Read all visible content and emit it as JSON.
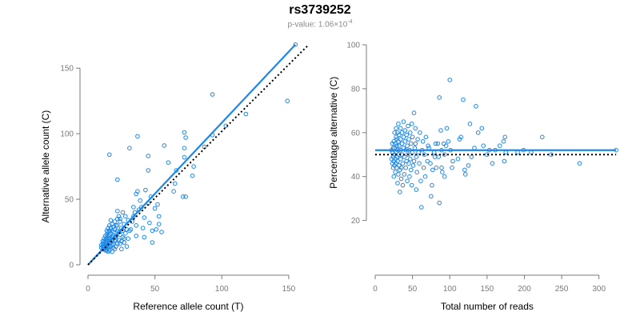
{
  "title": "rs3739252",
  "subtitle": {
    "prefix": "p-value: 1.06×10",
    "exponent": "-4"
  },
  "colors": {
    "points": "#1e88e5",
    "fit_line": "#1e88e5",
    "reference_line": "#000000",
    "axes": "#7a7a7a"
  },
  "chart_data": [
    {
      "type": "scatter",
      "xlabel": "Reference allele count (T)",
      "ylabel": "Alternative allele count (C)",
      "xlim": [
        0,
        165
      ],
      "ylim": [
        0,
        155
      ],
      "xticks": [
        0,
        50,
        100,
        150
      ],
      "yticks": [
        0,
        50,
        100,
        150
      ],
      "fit_line": {
        "x": [
          0,
          155
        ],
        "y": [
          0,
          168
        ]
      },
      "reference_line": {
        "x": [
          0,
          165
        ],
        "y": [
          0,
          168
        ],
        "style": "dotted"
      },
      "points": [
        [
          155,
          168
        ],
        [
          149,
          125
        ],
        [
          118,
          115
        ],
        [
          103,
          106
        ],
        [
          93,
          130
        ],
        [
          93,
          99
        ],
        [
          87,
          90
        ],
        [
          79,
          75
        ],
        [
          78,
          68
        ],
        [
          73,
          97
        ],
        [
          72,
          101
        ],
        [
          72,
          89
        ],
        [
          72,
          82
        ],
        [
          73,
          52
        ],
        [
          71,
          52
        ],
        [
          66,
          72
        ],
        [
          65,
          62
        ],
        [
          64,
          56
        ],
        [
          60,
          78
        ],
        [
          57,
          91
        ],
        [
          52,
          46
        ],
        [
          53,
          37
        ],
        [
          53,
          31
        ],
        [
          55,
          25
        ],
        [
          51,
          27
        ],
        [
          50,
          43
        ],
        [
          48,
          26
        ],
        [
          47,
          52
        ],
        [
          45,
          47
        ],
        [
          46,
          32
        ],
        [
          48,
          17
        ],
        [
          45,
          72
        ],
        [
          45,
          83
        ],
        [
          43,
          57
        ],
        [
          42,
          36
        ],
        [
          42,
          21
        ],
        [
          41,
          28
        ],
        [
          40,
          44
        ],
        [
          39,
          49
        ],
        [
          38,
          42
        ],
        [
          37,
          98
        ],
        [
          37,
          56
        ],
        [
          36,
          54
        ],
        [
          36,
          30
        ],
        [
          36,
          22
        ],
        [
          35,
          40
        ],
        [
          34,
          37
        ],
        [
          33,
          33
        ],
        [
          31,
          89
        ],
        [
          31,
          26
        ],
        [
          30,
          20
        ],
        [
          30,
          34
        ],
        [
          29,
          27
        ],
        [
          29,
          14
        ],
        [
          28,
          37
        ],
        [
          27,
          31
        ],
        [
          27,
          20
        ],
        [
          26,
          40
        ],
        [
          26,
          26
        ],
        [
          25,
          18
        ],
        [
          25,
          28
        ],
        [
          24,
          35
        ],
        [
          24,
          33
        ],
        [
          24,
          23
        ],
        [
          23,
          37
        ],
        [
          23,
          19
        ],
        [
          22,
          41
        ],
        [
          22,
          30
        ],
        [
          22,
          26
        ],
        [
          22,
          16
        ],
        [
          22,
          65
        ],
        [
          21,
          30
        ],
        [
          21,
          22
        ],
        [
          21,
          14
        ],
        [
          20,
          33
        ],
        [
          20,
          27
        ],
        [
          20,
          21
        ],
        [
          20,
          18
        ],
        [
          20,
          12
        ],
        [
          19,
          29
        ],
        [
          19,
          25
        ],
        [
          19,
          22
        ],
        [
          19,
          16
        ],
        [
          18,
          31
        ],
        [
          18,
          26
        ],
        [
          18,
          21
        ],
        [
          18,
          19
        ],
        [
          18,
          15
        ],
        [
          18,
          10
        ],
        [
          17,
          34
        ],
        [
          17,
          28
        ],
        [
          17,
          24
        ],
        [
          17,
          20
        ],
        [
          17,
          17
        ],
        [
          17,
          14
        ],
        [
          16,
          84
        ],
        [
          16,
          30
        ],
        [
          16,
          26
        ],
        [
          16,
          23
        ],
        [
          16,
          20
        ],
        [
          16,
          17
        ],
        [
          16,
          14
        ],
        [
          16,
          11
        ],
        [
          15,
          28
        ],
        [
          15,
          25
        ],
        [
          15,
          22
        ],
        [
          15,
          19
        ],
        [
          15,
          16
        ],
        [
          15,
          13
        ],
        [
          15,
          10
        ],
        [
          14,
          26
        ],
        [
          14,
          23
        ],
        [
          14,
          20
        ],
        [
          14,
          17
        ],
        [
          14,
          14
        ],
        [
          14,
          11
        ],
        [
          13,
          22
        ],
        [
          13,
          19
        ],
        [
          13,
          17
        ],
        [
          13,
          15
        ],
        [
          13,
          13
        ],
        [
          13,
          11
        ],
        [
          12,
          20
        ],
        [
          12,
          18
        ],
        [
          12,
          16
        ],
        [
          12,
          14
        ],
        [
          12,
          12
        ],
        [
          11,
          18
        ],
        [
          11,
          16
        ],
        [
          11,
          14
        ],
        [
          11,
          12
        ],
        [
          10,
          15
        ],
        [
          10,
          13
        ],
        [
          24,
          16
        ],
        [
          26,
          21
        ],
        [
          28,
          24
        ],
        [
          19,
          13
        ],
        [
          21,
          19
        ],
        [
          23,
          25
        ],
        [
          27,
          17
        ],
        [
          32,
          27
        ],
        [
          34,
          44
        ],
        [
          22,
          35
        ],
        [
          25,
          12
        ]
      ]
    },
    {
      "type": "scatter",
      "xlabel": "Total number of reads",
      "ylabel": "Percentage alternative (C)",
      "xlim": [
        0,
        325
      ],
      "ylim": [
        10,
        100
      ],
      "xticks": [
        0,
        50,
        100,
        150,
        200,
        250,
        300
      ],
      "yticks": [
        20,
        40,
        60,
        80,
        100
      ],
      "fit_line": {
        "x": [
          0,
          323
        ],
        "y": [
          52,
          52
        ]
      },
      "reference_line": {
        "x": [
          0,
          323
        ],
        "y": [
          50,
          50
        ],
        "style": "dotted"
      },
      "points": [
        [
          323,
          52
        ],
        [
          274,
          46
        ],
        [
          236,
          50
        ],
        [
          224,
          58
        ],
        [
          209,
          51
        ],
        [
          199,
          52
        ],
        [
          191,
          51
        ],
        [
          175,
          51
        ],
        [
          174,
          58
        ],
        [
          173,
          47
        ],
        [
          172,
          56
        ],
        [
          167,
          54
        ],
        [
          161,
          52
        ],
        [
          157,
          46
        ],
        [
          153,
          52
        ],
        [
          150,
          50
        ],
        [
          145,
          54
        ],
        [
          143,
          62
        ],
        [
          138,
          60
        ],
        [
          135,
          72
        ],
        [
          133,
          53
        ],
        [
          129,
          49
        ],
        [
          127,
          64
        ],
        [
          125,
          45
        ],
        [
          121,
          41
        ],
        [
          120,
          43
        ],
        [
          118,
          75
        ],
        [
          115,
          58
        ],
        [
          113,
          57
        ],
        [
          111,
          48
        ],
        [
          104,
          47
        ],
        [
          103,
          44
        ],
        [
          101,
          52
        ],
        [
          100,
          84
        ],
        [
          98,
          56
        ],
        [
          96,
          62
        ],
        [
          95,
          54
        ],
        [
          93,
          40
        ],
        [
          93,
          50
        ],
        [
          92,
          55
        ],
        [
          90,
          42
        ],
        [
          89,
          52
        ],
        [
          89,
          44
        ],
        [
          88,
          61
        ],
        [
          86,
          28
        ],
        [
          86,
          76
        ],
        [
          85,
          49
        ],
        [
          84,
          55
        ],
        [
          82,
          44
        ],
        [
          81,
          55
        ],
        [
          80,
          49
        ],
        [
          79,
          51
        ],
        [
          77,
          43
        ],
        [
          76,
          36
        ],
        [
          75,
          31
        ],
        [
          74,
          46
        ],
        [
          72,
          53
        ],
        [
          71,
          54
        ],
        [
          70,
          47
        ],
        [
          68,
          58
        ],
        [
          67,
          40
        ],
        [
          66,
          50
        ],
        [
          65,
          44
        ],
        [
          64,
          56
        ],
        [
          63,
          52
        ],
        [
          62,
          26
        ],
        [
          61,
          38
        ],
        [
          60,
          60
        ],
        [
          59,
          46
        ],
        [
          58,
          51
        ],
        [
          57,
          57
        ],
        [
          56,
          42
        ],
        [
          55,
          49
        ],
        [
          55,
          34
        ],
        [
          54,
          62
        ],
        [
          54,
          55
        ],
        [
          53,
          53
        ],
        [
          52,
          47
        ],
        [
          52,
          69
        ],
        [
          51,
          45
        ],
        [
          50,
          58
        ],
        [
          50,
          51
        ],
        [
          49,
          64
        ],
        [
          49,
          36
        ],
        [
          48,
          55
        ],
        [
          48,
          43
        ],
        [
          47,
          60
        ],
        [
          47,
          48
        ],
        [
          46,
          52
        ],
        [
          46,
          40
        ],
        [
          45,
          57
        ],
        [
          45,
          46
        ],
        [
          44,
          63
        ],
        [
          44,
          50
        ],
        [
          43,
          54
        ],
        [
          43,
          38
        ],
        [
          42,
          59
        ],
        [
          42,
          47
        ],
        [
          41,
          52
        ],
        [
          41,
          44
        ],
        [
          40,
          61
        ],
        [
          40,
          56
        ],
        [
          39,
          49
        ],
        [
          39,
          41
        ],
        [
          38,
          65
        ],
        [
          38,
          58
        ],
        [
          38,
          53
        ],
        [
          37,
          46
        ],
        [
          37,
          36
        ],
        [
          36,
          60
        ],
        [
          36,
          55
        ],
        [
          36,
          50
        ],
        [
          35,
          44
        ],
        [
          35,
          39
        ],
        [
          34,
          62
        ],
        [
          34,
          57
        ],
        [
          34,
          52
        ],
        [
          34,
          48
        ],
        [
          33,
          43
        ],
        [
          33,
          33
        ],
        [
          32,
          59
        ],
        [
          32,
          54
        ],
        [
          32,
          50
        ],
        [
          32,
          45
        ],
        [
          31,
          64
        ],
        [
          31,
          56
        ],
        [
          31,
          41
        ],
        [
          30,
          60
        ],
        [
          30,
          52
        ],
        [
          30,
          47
        ],
        [
          30,
          37
        ],
        [
          29,
          57
        ],
        [
          29,
          54
        ],
        [
          29,
          49
        ],
        [
          29,
          44
        ],
        [
          28,
          62
        ],
        [
          28,
          58
        ],
        [
          28,
          51
        ],
        [
          28,
          46
        ],
        [
          27,
          55
        ],
        [
          27,
          48
        ],
        [
          27,
          42
        ],
        [
          26,
          60
        ],
        [
          26,
          53
        ],
        [
          26,
          50
        ],
        [
          26,
          45
        ],
        [
          25,
          56
        ],
        [
          25,
          47
        ],
        [
          25,
          40
        ],
        [
          24,
          53
        ],
        [
          24,
          49
        ],
        [
          24,
          44
        ],
        [
          23,
          55
        ],
        [
          23,
          51
        ],
        [
          23,
          46
        ],
        [
          22,
          52
        ],
        [
          22,
          48
        ]
      ]
    }
  ]
}
